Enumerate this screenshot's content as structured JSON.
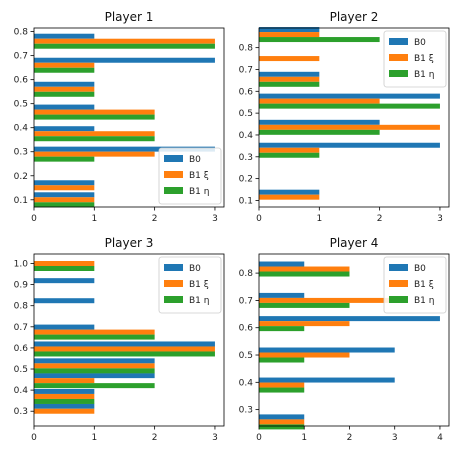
{
  "chart_data": [
    {
      "type": "bar",
      "orientation": "horizontal",
      "title": "Player 1",
      "xlim": [
        0,
        3.15
      ],
      "ylim": [
        0.07,
        0.815
      ],
      "xticks": [
        "0",
        "1",
        "2",
        "3"
      ],
      "yticks": [
        "0.1",
        "0.2",
        "0.3",
        "0.4",
        "0.5",
        "0.6",
        "0.7",
        "0.8"
      ],
      "legend": "lower-right",
      "legend_entries": [
        "B0",
        "B1 ξ",
        "B1 η"
      ],
      "y": [
        0.1,
        0.15,
        0.29,
        0.375,
        0.465,
        0.56,
        0.66,
        0.76
      ],
      "series": [
        {
          "name": "B0",
          "color": "#1f77b4",
          "values": [
            1,
            1,
            3,
            1,
            1,
            1,
            3,
            1
          ]
        },
        {
          "name": "B1 ξ",
          "color": "#ff7f0e",
          "values": [
            1,
            1,
            2,
            2,
            2,
            1,
            1,
            3
          ]
        },
        {
          "name": "B1 η",
          "color": "#2ca02c",
          "values": [
            1,
            0,
            1,
            2,
            2,
            1,
            1,
            3
          ]
        }
      ]
    },
    {
      "type": "bar",
      "orientation": "horizontal",
      "title": "Player 2",
      "xlim": [
        0,
        3.15
      ],
      "ylim": [
        0.07,
        0.89
      ],
      "xticks": [
        "0",
        "1",
        "2",
        "3"
      ],
      "yticks": [
        "0.1",
        "0.2",
        "0.3",
        "0.4",
        "0.5",
        "0.6",
        "0.7",
        "0.8"
      ],
      "legend": "upper-right",
      "legend_entries": [
        "B0",
        "B1 ξ",
        "B1 η"
      ],
      "y": [
        0.115,
        0.33,
        0.435,
        0.555,
        0.655,
        0.75,
        0.86
      ],
      "series": [
        {
          "name": "B0",
          "color": "#1f77b4",
          "values": [
            1,
            3,
            2,
            3,
            1,
            0,
            1
          ]
        },
        {
          "name": "B1 ξ",
          "color": "#ff7f0e",
          "values": [
            1,
            1,
            3,
            2,
            1,
            1,
            1
          ]
        },
        {
          "name": "B1 η",
          "color": "#2ca02c",
          "values": [
            0,
            1,
            2,
            3,
            1,
            0,
            2
          ]
        }
      ]
    },
    {
      "type": "bar",
      "orientation": "horizontal",
      "title": "Player 3",
      "xlim": [
        0,
        3.15
      ],
      "ylim": [
        0.23,
        1.045
      ],
      "xticks": [
        "0",
        "1",
        "2",
        "3"
      ],
      "yticks": [
        "0.3",
        "0.4",
        "0.5",
        "0.6",
        "0.7",
        "0.8",
        "0.9",
        "1.0"
      ],
      "legend": "upper-right",
      "legend_entries": [
        "B0",
        "B1 ξ",
        "B1 η"
      ],
      "y": [
        0.3,
        0.37,
        0.445,
        0.515,
        0.595,
        0.675,
        0.8,
        0.895,
        1.0
      ],
      "series": [
        {
          "name": "B0",
          "color": "#1f77b4",
          "values": [
            1,
            1,
            2,
            2,
            3,
            1,
            1,
            1,
            0
          ]
        },
        {
          "name": "B1 ξ",
          "color": "#ff7f0e",
          "values": [
            1,
            1,
            1,
            2,
            3,
            2,
            0,
            0,
            1
          ]
        },
        {
          "name": "B1 η",
          "color": "#2ca02c",
          "values": [
            0,
            1,
            2,
            2,
            3,
            2,
            0,
            0,
            1
          ]
        }
      ]
    },
    {
      "type": "bar",
      "orientation": "horizontal",
      "title": "Player 4",
      "xlim": [
        0,
        4.2
      ],
      "ylim": [
        0.24,
        0.87
      ],
      "xticks": [
        "0",
        "1",
        "2",
        "3",
        "4"
      ],
      "yticks": [
        "0.3",
        "0.4",
        "0.5",
        "0.6",
        "0.7",
        "0.8"
      ],
      "legend": "upper-right",
      "legend_entries": [
        "B0",
        "B1 ξ",
        "B1 η"
      ],
      "y": [
        0.255,
        0.39,
        0.5,
        0.615,
        0.7,
        0.815
      ],
      "series": [
        {
          "name": "B0",
          "color": "#1f77b4",
          "values": [
            1,
            3,
            3,
            4,
            1,
            1
          ]
        },
        {
          "name": "B1 ξ",
          "color": "#ff7f0e",
          "values": [
            1,
            1,
            2,
            2,
            3,
            2
          ]
        },
        {
          "name": "B1 η",
          "color": "#2ca02c",
          "values": [
            1,
            1,
            1,
            1,
            2,
            2
          ]
        }
      ]
    }
  ]
}
